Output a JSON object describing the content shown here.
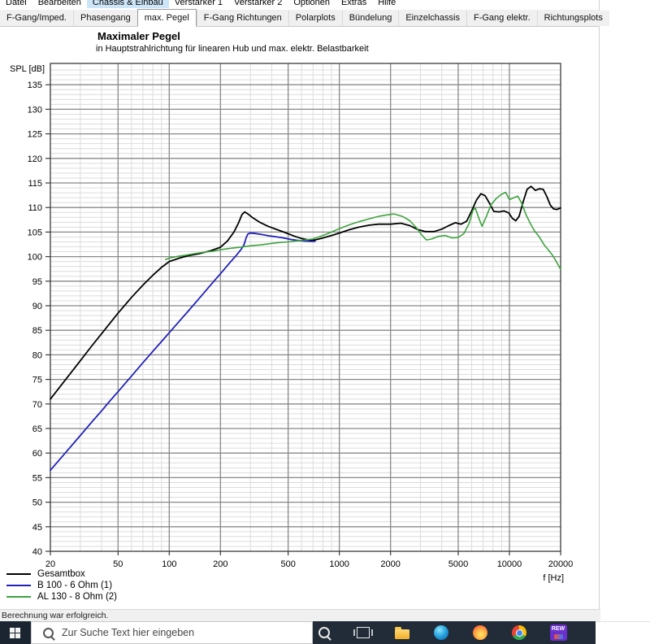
{
  "menu": {
    "active": "Chassis & Einbau",
    "items": [
      {
        "label": "Datei"
      },
      {
        "label": "Bearbeiten"
      },
      {
        "label": "Chassis & Einbau"
      },
      {
        "label": "Verstärker 1"
      },
      {
        "label": "Verstärker 2"
      },
      {
        "label": "Optionen"
      },
      {
        "label": "Extras"
      },
      {
        "label": "Hilfe"
      }
    ]
  },
  "tabs": {
    "active": "max. Pegel",
    "items": [
      {
        "label": "F-Gang/Imped."
      },
      {
        "label": "Phasengang"
      },
      {
        "label": "max. Pegel"
      },
      {
        "label": "F-Gang Richtungen"
      },
      {
        "label": "Polarplots"
      },
      {
        "label": "Bündelung"
      },
      {
        "label": "Einzelchassis"
      },
      {
        "label": "F-Gang elektr."
      },
      {
        "label": "Richtungsplots"
      }
    ]
  },
  "page": {
    "title": "Maximaler Pegel",
    "subtitle": "in Hauptstrahlrichtung für linearen Hub und max. elektr. Belastbarkeit"
  },
  "chart_data": {
    "type": "line",
    "title": "Maximaler Pegel",
    "xlabel": "f [Hz]",
    "ylabel": "SPL [dB]",
    "x_scale": "log",
    "xlim": [
      20,
      20000
    ],
    "ylim": [
      40,
      135
    ],
    "grid": "major+minor",
    "legend_position": "bottom-left",
    "x_ticks": [
      20,
      50,
      100,
      200,
      500,
      1000,
      2000,
      5000,
      10000,
      20000
    ],
    "y_ticks": [
      135,
      130,
      125,
      120,
      115,
      110,
      105,
      100,
      95,
      90,
      85,
      80,
      75,
      70,
      65,
      60,
      55,
      50,
      45,
      40
    ],
    "series": [
      {
        "name": "Gesamtbox",
        "color": "#000000",
        "points": [
          [
            20,
            71
          ],
          [
            25,
            75.3
          ],
          [
            30,
            78.8
          ],
          [
            35,
            81.8
          ],
          [
            40,
            84.3
          ],
          [
            45,
            86.5
          ],
          [
            50,
            88.5
          ],
          [
            60,
            91.7
          ],
          [
            70,
            94.2
          ],
          [
            80,
            96.2
          ],
          [
            90,
            97.8
          ],
          [
            100,
            99
          ],
          [
            115,
            99.7
          ],
          [
            130,
            100.2
          ],
          [
            150,
            100.6
          ],
          [
            175,
            101.2
          ],
          [
            200,
            101.9
          ],
          [
            220,
            103.2
          ],
          [
            240,
            105
          ],
          [
            255,
            106.8
          ],
          [
            268,
            108.6
          ],
          [
            278,
            109.1
          ],
          [
            290,
            108.7
          ],
          [
            310,
            107.9
          ],
          [
            340,
            107
          ],
          [
            380,
            106.2
          ],
          [
            430,
            105.5
          ],
          [
            480,
            104.9
          ],
          [
            540,
            104.2
          ],
          [
            600,
            103.7
          ],
          [
            660,
            103.4
          ],
          [
            720,
            103.4
          ],
          [
            800,
            103.8
          ],
          [
            900,
            104.3
          ],
          [
            1000,
            104.8
          ],
          [
            1150,
            105.5
          ],
          [
            1300,
            106
          ],
          [
            1500,
            106.4
          ],
          [
            1700,
            106.6
          ],
          [
            2000,
            106.6
          ],
          [
            2300,
            106.8
          ],
          [
            2600,
            106.3
          ],
          [
            2900,
            105.5
          ],
          [
            3200,
            105.1
          ],
          [
            3600,
            105.1
          ],
          [
            4000,
            105.6
          ],
          [
            4400,
            106.3
          ],
          [
            4800,
            106.9
          ],
          [
            5200,
            106.6
          ],
          [
            5600,
            107.2
          ],
          [
            6000,
            109.3
          ],
          [
            6400,
            111.5
          ],
          [
            6800,
            112.8
          ],
          [
            7200,
            112.4
          ],
          [
            7600,
            111
          ],
          [
            8100,
            109.2
          ],
          [
            8700,
            109.1
          ],
          [
            9300,
            109.3
          ],
          [
            9900,
            108.9
          ],
          [
            10400,
            107.8
          ],
          [
            10900,
            107.3
          ],
          [
            11400,
            108.2
          ],
          [
            12000,
            111
          ],
          [
            12700,
            113.7
          ],
          [
            13400,
            114.3
          ],
          [
            14200,
            113.5
          ],
          [
            15000,
            113.8
          ],
          [
            15800,
            113.7
          ],
          [
            16600,
            112.2
          ],
          [
            17400,
            110.5
          ],
          [
            18200,
            109.7
          ],
          [
            19000,
            109.6
          ],
          [
            20000,
            109.9
          ]
        ]
      },
      {
        "name": "B 100 - 6 Ohm (1)",
        "color": "#2020bb",
        "points": [
          [
            20,
            56.5
          ],
          [
            25,
            60.4
          ],
          [
            30,
            63.6
          ],
          [
            35,
            66.3
          ],
          [
            40,
            68.6
          ],
          [
            45,
            70.7
          ],
          [
            50,
            72.5
          ],
          [
            60,
            75.7
          ],
          [
            70,
            78.4
          ],
          [
            80,
            80.7
          ],
          [
            90,
            82.7
          ],
          [
            100,
            84.5
          ],
          [
            115,
            86.9
          ],
          [
            130,
            89
          ],
          [
            150,
            91.5
          ],
          [
            175,
            94.2
          ],
          [
            200,
            96.5
          ],
          [
            225,
            98.6
          ],
          [
            250,
            100.4
          ],
          [
            265,
            101.5
          ],
          [
            275,
            102.4
          ],
          [
            283,
            103.8
          ],
          [
            290,
            104.6
          ],
          [
            300,
            104.8
          ],
          [
            320,
            104.7
          ],
          [
            350,
            104.5
          ],
          [
            390,
            104.2
          ],
          [
            430,
            104
          ],
          [
            470,
            103.8
          ],
          [
            520,
            103.5
          ],
          [
            570,
            103.3
          ],
          [
            620,
            103.2
          ],
          [
            680,
            103.1
          ],
          [
            720,
            103.1
          ]
        ]
      },
      {
        "name": "AL 130 - 8 Ohm (2)",
        "color": "#3da33d",
        "points": [
          [
            95,
            99.4
          ],
          [
            100,
            99.7
          ],
          [
            110,
            100
          ],
          [
            125,
            100.3
          ],
          [
            140,
            100.6
          ],
          [
            160,
            100.9
          ],
          [
            180,
            101.1
          ],
          [
            200,
            101.4
          ],
          [
            230,
            101.7
          ],
          [
            260,
            101.9
          ],
          [
            300,
            102.2
          ],
          [
            350,
            102.4
          ],
          [
            400,
            102.7
          ],
          [
            450,
            102.9
          ],
          [
            500,
            103
          ],
          [
            560,
            103.2
          ],
          [
            630,
            103.4
          ],
          [
            700,
            103.6
          ],
          [
            800,
            104.3
          ],
          [
            900,
            105
          ],
          [
            1000,
            105.7
          ],
          [
            1150,
            106.5
          ],
          [
            1300,
            107.1
          ],
          [
            1500,
            107.7
          ],
          [
            1700,
            108.2
          ],
          [
            1900,
            108.5
          ],
          [
            2100,
            108.7
          ],
          [
            2350,
            108.2
          ],
          [
            2600,
            107.3
          ],
          [
            2850,
            105.8
          ],
          [
            3050,
            104.4
          ],
          [
            3250,
            103.4
          ],
          [
            3500,
            103.6
          ],
          [
            3800,
            104.1
          ],
          [
            4200,
            104.3
          ],
          [
            4600,
            103.8
          ],
          [
            5000,
            103.9
          ],
          [
            5400,
            104.7
          ],
          [
            5800,
            106.8
          ],
          [
            6100,
            109.4
          ],
          [
            6300,
            109.9
          ],
          [
            6600,
            107.9
          ],
          [
            6900,
            106.2
          ],
          [
            7300,
            108.1
          ],
          [
            7800,
            110.6
          ],
          [
            8400,
            111.9
          ],
          [
            9000,
            112.7
          ],
          [
            9500,
            113.1
          ],
          [
            10000,
            111.6
          ],
          [
            10600,
            112
          ],
          [
            11200,
            112.3
          ],
          [
            11800,
            110.9
          ],
          [
            12500,
            108.6
          ],
          [
            13200,
            106.9
          ],
          [
            14000,
            105.3
          ],
          [
            15000,
            104
          ],
          [
            16000,
            102.4
          ],
          [
            17000,
            101.3
          ],
          [
            18000,
            100.2
          ],
          [
            19000,
            98.8
          ],
          [
            20000,
            97.4
          ]
        ]
      }
    ]
  },
  "status_bar": {
    "text": "Berechnung war erfolgreich."
  },
  "taskbar": {
    "search_placeholder": "Zur Suche Text hier eingeben",
    "rew_label": "REW",
    "icons": [
      "windows-start",
      "search",
      "task-view",
      "file-explorer",
      "edge",
      "firefox",
      "chrome",
      "rew"
    ]
  }
}
